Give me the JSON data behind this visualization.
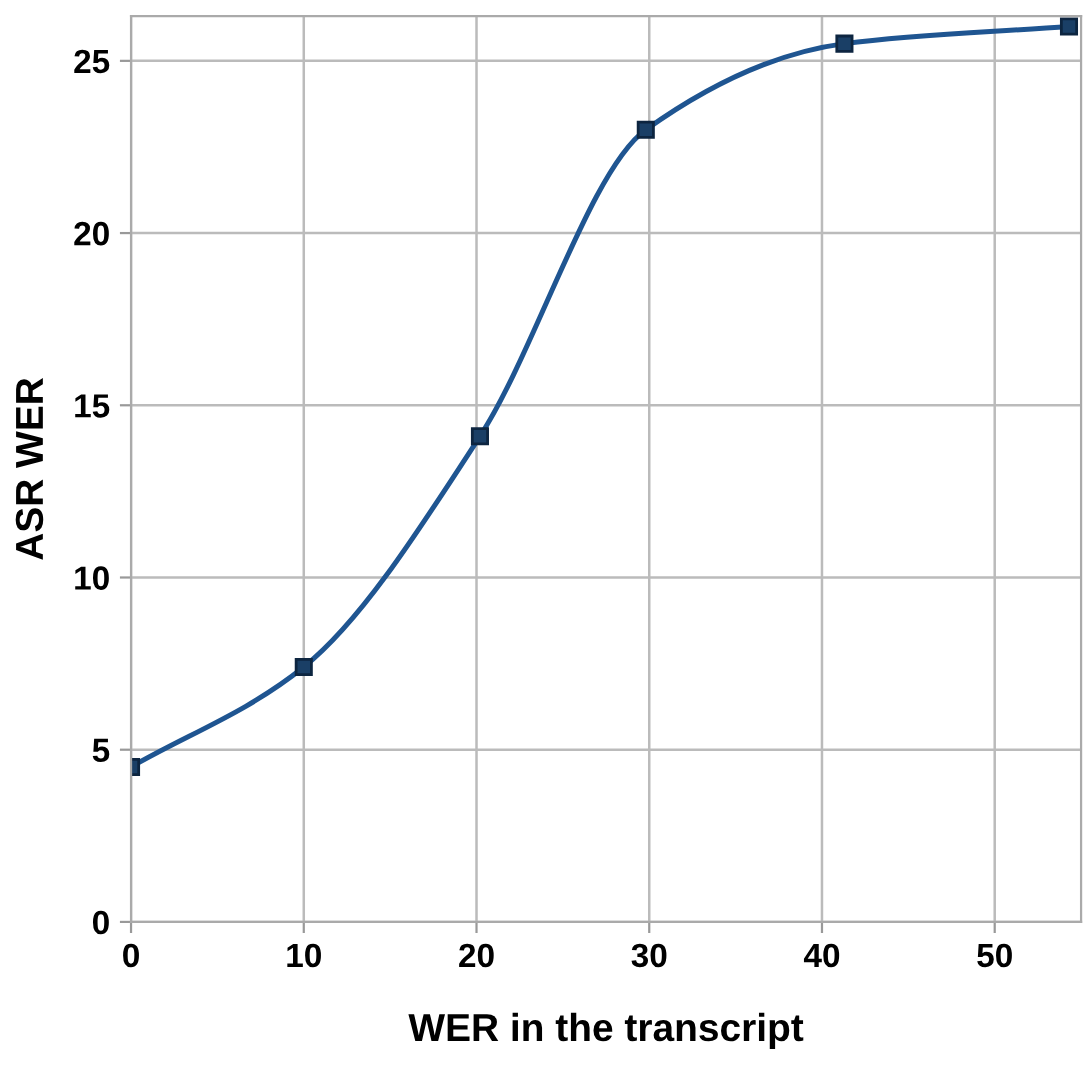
{
  "chart_data": {
    "type": "line",
    "xlabel": "WER in the transcript",
    "ylabel": "ASR WER",
    "x": [
      0,
      10,
      20.2,
      29.8,
      41.3,
      54.3
    ],
    "series": [
      {
        "color": "#1f5591",
        "values": [
          4.5,
          7.4,
          14.1,
          23.0,
          25.5,
          26.0
        ]
      }
    ],
    "xlim": [
      0,
      55
    ],
    "ylim": [
      0,
      26.3
    ],
    "xticks": [
      0,
      10,
      20,
      30,
      40,
      50
    ],
    "yticks": [
      0,
      5,
      10,
      15,
      20,
      25
    ],
    "grid": true,
    "marker": "square",
    "line_style": "solid"
  }
}
